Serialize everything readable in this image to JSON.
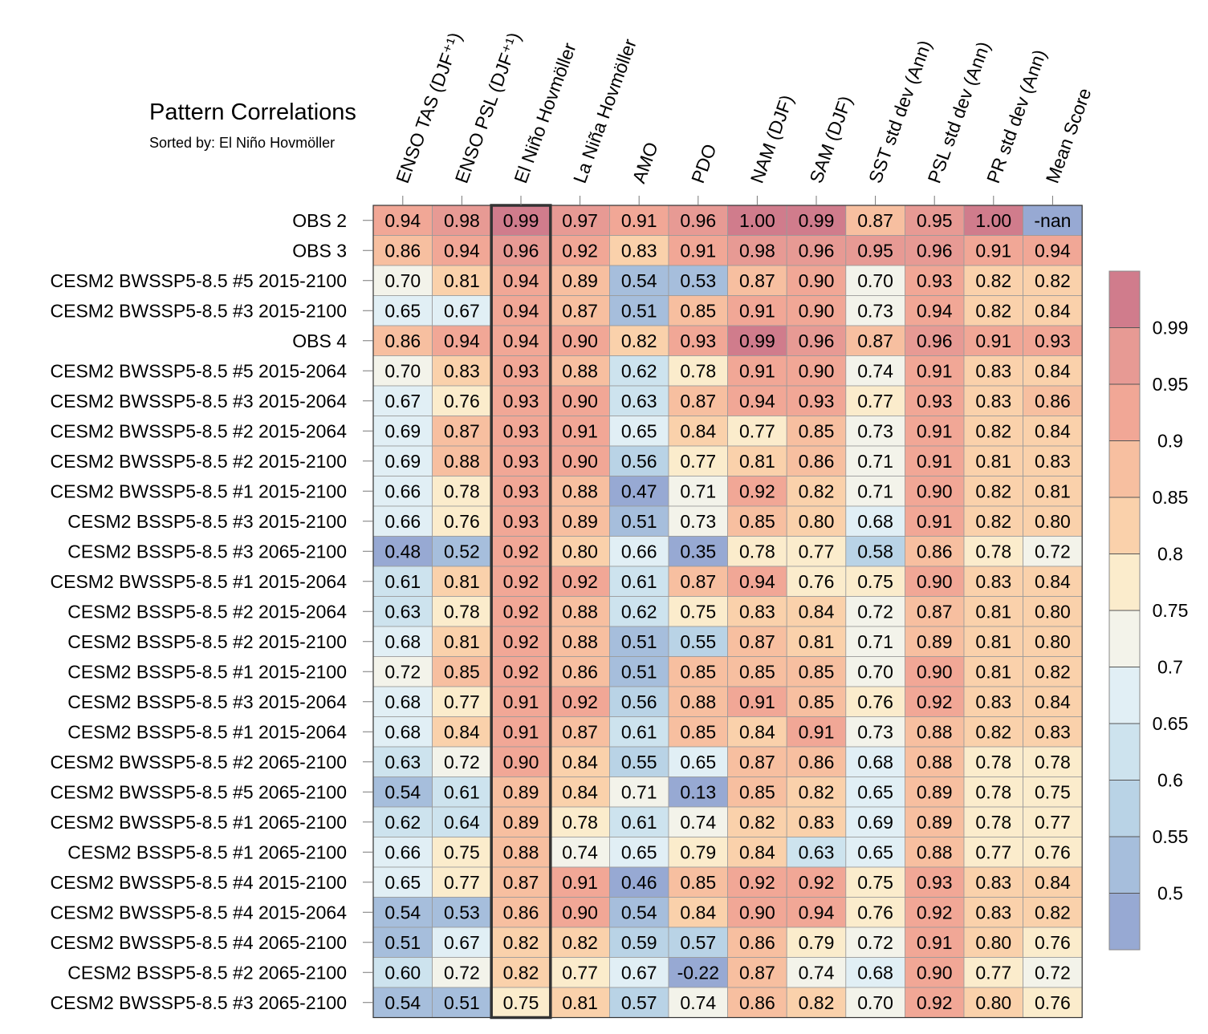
{
  "chart_data": {
    "type": "heatmap",
    "title": "Pattern Correlations",
    "subtitle": "Sorted by: El Niño Hovmöller",
    "columns": [
      "ENSO TAS (DJF⁺¹)",
      "ENSO PSL (DJF⁺¹)",
      "El Niño Hovmöller",
      "La Niña Hovmöller",
      "AMO",
      "PDO",
      "NAM (DJF)",
      "SAM (DJF)",
      "SST std dev (Ann)",
      "PSL std dev (Ann)",
      "PR std dev (Ann)",
      "Mean Score"
    ],
    "highlighted_column": "El Niño Hovmöller",
    "rows": [
      {
        "label": "OBS 2",
        "values": [
          "0.94",
          "0.98",
          "0.99",
          "0.97",
          "0.91",
          "0.96",
          "1.00",
          "0.99",
          "0.87",
          "0.95",
          "1.00",
          "-nan"
        ]
      },
      {
        "label": "OBS 3",
        "values": [
          "0.86",
          "0.94",
          "0.96",
          "0.92",
          "0.83",
          "0.91",
          "0.98",
          "0.96",
          "0.95",
          "0.96",
          "0.91",
          "0.94"
        ]
      },
      {
        "label": "CESM2 BWSSP5-8.5 #5 2015-2100",
        "values": [
          "0.70",
          "0.81",
          "0.94",
          "0.89",
          "0.54",
          "0.53",
          "0.87",
          "0.90",
          "0.70",
          "0.93",
          "0.82",
          "0.82"
        ]
      },
      {
        "label": "CESM2 BWSSP5-8.5 #3 2015-2100",
        "values": [
          "0.65",
          "0.67",
          "0.94",
          "0.87",
          "0.51",
          "0.85",
          "0.91",
          "0.90",
          "0.73",
          "0.94",
          "0.82",
          "0.84"
        ]
      },
      {
        "label": "OBS 4",
        "values": [
          "0.86",
          "0.94",
          "0.94",
          "0.90",
          "0.82",
          "0.93",
          "0.99",
          "0.96",
          "0.87",
          "0.96",
          "0.91",
          "0.93"
        ]
      },
      {
        "label": "CESM2 BWSSP5-8.5 #5 2015-2064",
        "values": [
          "0.70",
          "0.83",
          "0.93",
          "0.88",
          "0.62",
          "0.78",
          "0.91",
          "0.90",
          "0.74",
          "0.91",
          "0.83",
          "0.84"
        ]
      },
      {
        "label": "CESM2 BWSSP5-8.5 #3 2015-2064",
        "values": [
          "0.67",
          "0.76",
          "0.93",
          "0.90",
          "0.63",
          "0.87",
          "0.94",
          "0.93",
          "0.77",
          "0.93",
          "0.83",
          "0.86"
        ]
      },
      {
        "label": "CESM2 BWSSP5-8.5 #2 2015-2064",
        "values": [
          "0.69",
          "0.87",
          "0.93",
          "0.91",
          "0.65",
          "0.84",
          "0.77",
          "0.85",
          "0.73",
          "0.91",
          "0.82",
          "0.84"
        ]
      },
      {
        "label": "CESM2 BWSSP5-8.5 #2 2015-2100",
        "values": [
          "0.69",
          "0.88",
          "0.93",
          "0.90",
          "0.56",
          "0.77",
          "0.81",
          "0.86",
          "0.71",
          "0.91",
          "0.81",
          "0.83"
        ]
      },
      {
        "label": "CESM2 BWSSP5-8.5 #1 2015-2100",
        "values": [
          "0.66",
          "0.78",
          "0.93",
          "0.88",
          "0.47",
          "0.71",
          "0.92",
          "0.82",
          "0.71",
          "0.90",
          "0.82",
          "0.81"
        ]
      },
      {
        "label": "CESM2 BSSP5-8.5 #3 2015-2100",
        "values": [
          "0.66",
          "0.76",
          "0.93",
          "0.89",
          "0.51",
          "0.73",
          "0.85",
          "0.80",
          "0.68",
          "0.91",
          "0.82",
          "0.80"
        ]
      },
      {
        "label": "CESM2 BSSP5-8.5 #3 2065-2100",
        "values": [
          "0.48",
          "0.52",
          "0.92",
          "0.80",
          "0.66",
          "0.35",
          "0.78",
          "0.77",
          "0.58",
          "0.86",
          "0.78",
          "0.72"
        ]
      },
      {
        "label": "CESM2 BWSSP5-8.5 #1 2015-2064",
        "values": [
          "0.61",
          "0.81",
          "0.92",
          "0.92",
          "0.61",
          "0.87",
          "0.94",
          "0.76",
          "0.75",
          "0.90",
          "0.83",
          "0.84"
        ]
      },
      {
        "label": "CESM2 BSSP5-8.5 #2 2015-2064",
        "values": [
          "0.63",
          "0.78",
          "0.92",
          "0.88",
          "0.62",
          "0.75",
          "0.83",
          "0.84",
          "0.72",
          "0.87",
          "0.81",
          "0.80"
        ]
      },
      {
        "label": "CESM2 BSSP5-8.5 #2 2015-2100",
        "values": [
          "0.68",
          "0.81",
          "0.92",
          "0.88",
          "0.51",
          "0.55",
          "0.87",
          "0.81",
          "0.71",
          "0.89",
          "0.81",
          "0.80"
        ]
      },
      {
        "label": "CESM2 BSSP5-8.5 #1 2015-2100",
        "values": [
          "0.72",
          "0.85",
          "0.92",
          "0.86",
          "0.51",
          "0.85",
          "0.85",
          "0.85",
          "0.70",
          "0.90",
          "0.81",
          "0.82"
        ]
      },
      {
        "label": "CESM2 BSSP5-8.5 #3 2015-2064",
        "values": [
          "0.68",
          "0.77",
          "0.91",
          "0.92",
          "0.56",
          "0.88",
          "0.91",
          "0.85",
          "0.76",
          "0.92",
          "0.83",
          "0.84"
        ]
      },
      {
        "label": "CESM2 BSSP5-8.5 #1 2015-2064",
        "values": [
          "0.68",
          "0.84",
          "0.91",
          "0.87",
          "0.61",
          "0.85",
          "0.84",
          "0.91",
          "0.73",
          "0.88",
          "0.82",
          "0.83"
        ]
      },
      {
        "label": "CESM2 BWSSP5-8.5 #2 2065-2100",
        "values": [
          "0.63",
          "0.72",
          "0.90",
          "0.84",
          "0.55",
          "0.65",
          "0.87",
          "0.86",
          "0.68",
          "0.88",
          "0.78",
          "0.78"
        ]
      },
      {
        "label": "CESM2 BWSSP5-8.5 #5 2065-2100",
        "values": [
          "0.54",
          "0.61",
          "0.89",
          "0.84",
          "0.71",
          "0.13",
          "0.85",
          "0.82",
          "0.65",
          "0.89",
          "0.78",
          "0.75"
        ]
      },
      {
        "label": "CESM2 BWSSP5-8.5 #1 2065-2100",
        "values": [
          "0.62",
          "0.64",
          "0.89",
          "0.78",
          "0.61",
          "0.74",
          "0.82",
          "0.83",
          "0.69",
          "0.89",
          "0.78",
          "0.77"
        ]
      },
      {
        "label": "CESM2 BSSP5-8.5 #1 2065-2100",
        "values": [
          "0.66",
          "0.75",
          "0.88",
          "0.74",
          "0.65",
          "0.79",
          "0.84",
          "0.63",
          "0.65",
          "0.88",
          "0.77",
          "0.76"
        ]
      },
      {
        "label": "CESM2 BWSSP5-8.5 #4 2015-2100",
        "values": [
          "0.65",
          "0.77",
          "0.87",
          "0.91",
          "0.46",
          "0.85",
          "0.92",
          "0.92",
          "0.75",
          "0.93",
          "0.83",
          "0.84"
        ]
      },
      {
        "label": "CESM2 BWSSP5-8.5 #4 2015-2064",
        "values": [
          "0.54",
          "0.53",
          "0.86",
          "0.90",
          "0.54",
          "0.84",
          "0.90",
          "0.94",
          "0.76",
          "0.92",
          "0.83",
          "0.82"
        ]
      },
      {
        "label": "CESM2 BWSSP5-8.5 #4 2065-2100",
        "values": [
          "0.51",
          "0.67",
          "0.82",
          "0.82",
          "0.59",
          "0.57",
          "0.86",
          "0.79",
          "0.72",
          "0.91",
          "0.80",
          "0.76"
        ]
      },
      {
        "label": "CESM2 BSSP5-8.5 #2 2065-2100",
        "values": [
          "0.60",
          "0.72",
          "0.82",
          "0.77",
          "0.67",
          "-0.22",
          "0.87",
          "0.74",
          "0.68",
          "0.90",
          "0.77",
          "0.72"
        ]
      },
      {
        "label": "CESM2 BWSSP5-8.5 #3 2065-2100",
        "values": [
          "0.54",
          "0.51",
          "0.75",
          "0.81",
          "0.57",
          "0.74",
          "0.86",
          "0.82",
          "0.70",
          "0.92",
          "0.80",
          "0.76"
        ]
      }
    ],
    "colorbar": {
      "ticks": [
        "0.99",
        "0.95",
        "0.9",
        "0.85",
        "0.8",
        "0.75",
        "0.7",
        "0.65",
        "0.6",
        "0.55",
        "0.5"
      ],
      "tick_values": [
        0.99,
        0.95,
        0.9,
        0.85,
        0.8,
        0.75,
        0.7,
        0.65,
        0.6,
        0.55,
        0.5
      ],
      "bin_colors_top_to_bottom": [
        "#d07c8c",
        "#e79a94",
        "#f1a796",
        "#f7bfa0",
        "#fad1ab",
        "#fbeccc",
        "#f3f3ea",
        "#e1eff5",
        "#cde3ee",
        "#b9d3e6",
        "#a6bedc",
        "#97a9d3"
      ]
    }
  }
}
